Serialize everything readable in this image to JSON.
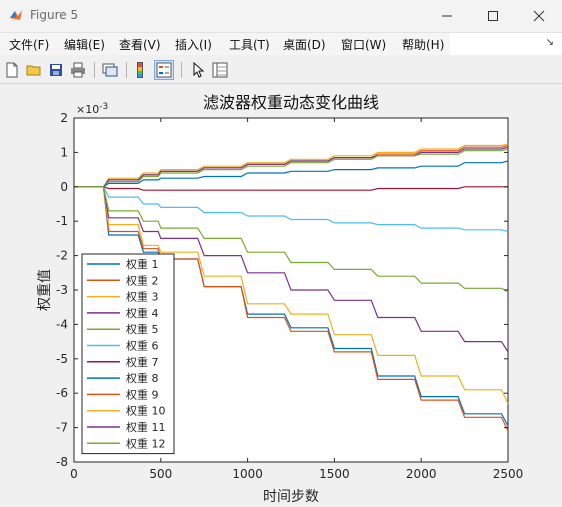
{
  "window": {
    "title": "Figure 5"
  },
  "menu": [
    "文件(F)",
    "编辑(E)",
    "查看(V)",
    "插入(I)",
    "工具(T)",
    "桌面(D)",
    "窗口(W)",
    "帮助(H)"
  ],
  "toolbar_icons": [
    "new-figure-icon",
    "open-file-icon",
    "save-icon",
    "print-icon",
    "link-plot-icon",
    "insert-colorbar-icon",
    "insert-legend-icon",
    "pointer-icon",
    "property-inspector-icon"
  ],
  "chart_data": {
    "type": "line",
    "title": "滤波器权重动态变化曲线",
    "xlabel": "时间步数",
    "ylabel": "权重值",
    "exponent_label": "×10-3",
    "xlim": [
      0,
      2500
    ],
    "ylim": [
      -8,
      2
    ],
    "xticks": [
      0,
      500,
      1000,
      1500,
      2000,
      2500
    ],
    "yticks": [
      2,
      1,
      0,
      -1,
      -2,
      -3,
      -4,
      -5,
      -6,
      -7,
      -8
    ],
    "grid": false,
    "legend_position": "bottom-left",
    "x": [
      0,
      200,
      400,
      500,
      750,
      1000,
      1250,
      1500,
      1750,
      2000,
      2250,
      2500
    ],
    "series": [
      {
        "name": "权重 1",
        "color": "#0072bd",
        "values": [
          0,
          -1.4,
          -1.9,
          -2.1,
          -2.9,
          -3.7,
          -4.1,
          -4.7,
          -5.5,
          -6.1,
          -6.6,
          -6.95
        ]
      },
      {
        "name": "权重 2",
        "color": "#d95319",
        "values": [
          0,
          0.2,
          0.35,
          0.45,
          0.55,
          0.65,
          0.75,
          0.85,
          0.95,
          1.05,
          1.15,
          1.2
        ]
      },
      {
        "name": "权重 3",
        "color": "#edb120",
        "values": [
          0,
          0.25,
          0.4,
          0.5,
          0.6,
          0.7,
          0.8,
          0.9,
          1.0,
          1.1,
          1.2,
          1.25
        ]
      },
      {
        "name": "权重 4",
        "color": "#7e2f8e",
        "values": [
          0,
          0.2,
          0.35,
          0.45,
          0.55,
          0.65,
          0.75,
          0.85,
          0.9,
          1.0,
          1.1,
          1.15
        ]
      },
      {
        "name": "权重 5",
        "color": "#77ac30",
        "values": [
          0,
          0.15,
          0.3,
          0.4,
          0.5,
          0.6,
          0.7,
          0.8,
          0.9,
          0.95,
          1.05,
          1.1
        ]
      },
      {
        "name": "权重 6",
        "color": "#4dbeee",
        "values": [
          0,
          -0.3,
          -0.5,
          -0.6,
          -0.75,
          -0.85,
          -0.95,
          -1.05,
          -1.1,
          -1.2,
          -1.25,
          -1.3
        ]
      },
      {
        "name": "权重 7",
        "color": "#a2142f",
        "values": [
          0,
          -0.05,
          -0.1,
          -0.1,
          -0.1,
          -0.1,
          -0.1,
          -0.1,
          -0.05,
          -0.05,
          0,
          0
        ]
      },
      {
        "name": "权重 8",
        "color": "#0072bd",
        "values": [
          0,
          0.1,
          0.2,
          0.25,
          0.3,
          0.4,
          0.45,
          0.5,
          0.55,
          0.6,
          0.7,
          0.75
        ]
      },
      {
        "name": "权重 9",
        "color": "#d95319",
        "values": [
          0,
          -1.3,
          -1.8,
          -2.1,
          -2.9,
          -3.8,
          -4.2,
          -4.8,
          -5.6,
          -6.2,
          -6.7,
          -7.1
        ]
      },
      {
        "name": "权重 10",
        "color": "#edb120",
        "values": [
          0,
          -1.1,
          -1.7,
          -1.9,
          -2.6,
          -3.4,
          -3.7,
          -4.3,
          -4.9,
          -5.5,
          -5.9,
          -6.3
        ]
      },
      {
        "name": "权重 11",
        "color": "#7e2f8e",
        "values": [
          0,
          -0.9,
          -1.3,
          -1.5,
          -2.0,
          -2.5,
          -3.0,
          -3.3,
          -3.8,
          -4.2,
          -4.5,
          -4.8
        ]
      },
      {
        "name": "权重 12",
        "color": "#77ac30",
        "values": [
          0,
          -0.7,
          -1.0,
          -1.2,
          -1.5,
          -1.9,
          -2.2,
          -2.4,
          -2.6,
          -2.8,
          -2.95,
          -3.05
        ]
      }
    ]
  }
}
